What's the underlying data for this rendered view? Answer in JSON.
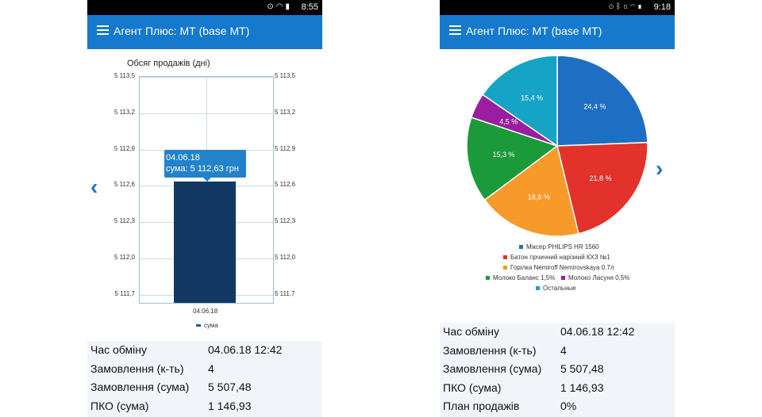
{
  "left_screen": {
    "status_bar": {
      "icons": [
        "location-icon",
        "wifi-icon",
        "battery-icon"
      ],
      "time": "8:55"
    },
    "app_bar": {
      "title": "Агент Плюс: МТ (base МТ)"
    },
    "chart_data": {
      "type": "bar",
      "title": "Обсяг продажів (дні)",
      "categories": [
        "04.06.18"
      ],
      "series": [
        {
          "name": "сума",
          "values": [
            5112.63
          ],
          "color": "#123963"
        }
      ],
      "y_ticks": [
        "5 113,5",
        "5 113,2",
        "5 112,9",
        "5 112,6",
        "5 112,3",
        "5 112,0",
        "5 111,7"
      ],
      "y_tick_values": [
        5113.5,
        5113.2,
        5112.9,
        5112.6,
        5112.3,
        5112.0,
        5111.7
      ],
      "ylim": [
        5111.62,
        5113.5
      ],
      "tooltip": {
        "date": "04.06.18",
        "text": "сума: 5 112,63 грн"
      },
      "legend": "bottom",
      "grid": true
    },
    "info": [
      {
        "label": "Час обміну",
        "value": "04.06.18 12:42"
      },
      {
        "label": "Замовлення (к-ть)",
        "value": "4"
      },
      {
        "label": "Замовлення (сума)",
        "value": "5 507,48"
      },
      {
        "label": "ПКО (сума)",
        "value": "1 146,93"
      }
    ]
  },
  "right_screen": {
    "status_bar": {
      "icons": [
        "location-icon",
        "bluetooth-icon",
        "vibrate-icon",
        "wifi-icon",
        "battery-icon"
      ],
      "time": "9:18"
    },
    "app_bar": {
      "title": "Агент Плюс: МТ (base МТ)"
    },
    "chart_data": {
      "type": "pie",
      "slices": [
        {
          "name": "Міксер PHILIPS HR 1560",
          "value": 24.4,
          "label": "24,4 %",
          "color": "#1e6fc3"
        },
        {
          "name": "Батон гірчичний нарізний КХЗ №1",
          "value": 21.8,
          "label": "21,8 %",
          "color": "#e3322b"
        },
        {
          "name": "Горілка Nemiroff Nemirovskaya 0.7л",
          "value": 18.6,
          "label": "18,6 %",
          "color": "#f79a2a"
        },
        {
          "name": "Молоко Баланс 1,5%",
          "value": 15.3,
          "label": "15,3 %",
          "color": "#1b9a3a"
        },
        {
          "name": "Молоко Ласуня 0,5%",
          "value": 4.5,
          "label": "4,5 %",
          "color": "#9a1da2"
        },
        {
          "name": "Остальные",
          "value": 15.4,
          "label": "15,4 %",
          "color": "#15a3c6"
        }
      ],
      "legend": "bottom"
    },
    "info": [
      {
        "label": "Час обміну",
        "value": "04.06.18 12:42"
      },
      {
        "label": "Замовлення (к-ть)",
        "value": "4"
      },
      {
        "label": "Замовлення (сума)",
        "value": "5 507,48"
      },
      {
        "label": "ПКО (сума)",
        "value": "1 146,93"
      },
      {
        "label": "План продажів",
        "value": "0%"
      }
    ]
  }
}
